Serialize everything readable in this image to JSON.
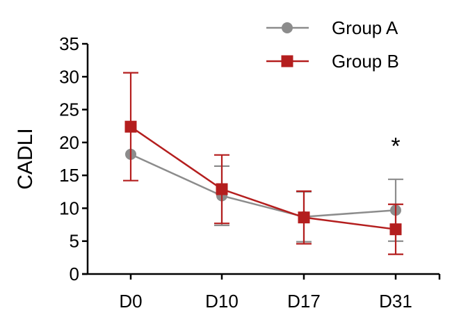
{
  "chart_data": {
    "type": "line",
    "title": "",
    "xlabel": "",
    "ylabel": "CADLI",
    "ylim": [
      0,
      35
    ],
    "yticks": [
      0,
      5,
      10,
      15,
      20,
      25,
      30,
      35
    ],
    "categories": [
      "D0",
      "D10",
      "D17",
      "D31"
    ],
    "legend_position": "top-right",
    "grid": false,
    "series": [
      {
        "name": "Group A",
        "color": "#8c8c8c",
        "marker": "circle",
        "values": [
          18.2,
          11.9,
          8.7,
          9.7
        ],
        "error": [
          null,
          4.5,
          3.8,
          4.7
        ]
      },
      {
        "name": "Group B",
        "color": "#b41e1e",
        "marker": "square",
        "values": [
          22.4,
          12.9,
          8.6,
          6.8
        ],
        "error": [
          8.2,
          5.2,
          4.0,
          3.8
        ]
      }
    ],
    "annotations": [
      {
        "category": "D31",
        "text": "*",
        "y": 19.5
      }
    ]
  }
}
